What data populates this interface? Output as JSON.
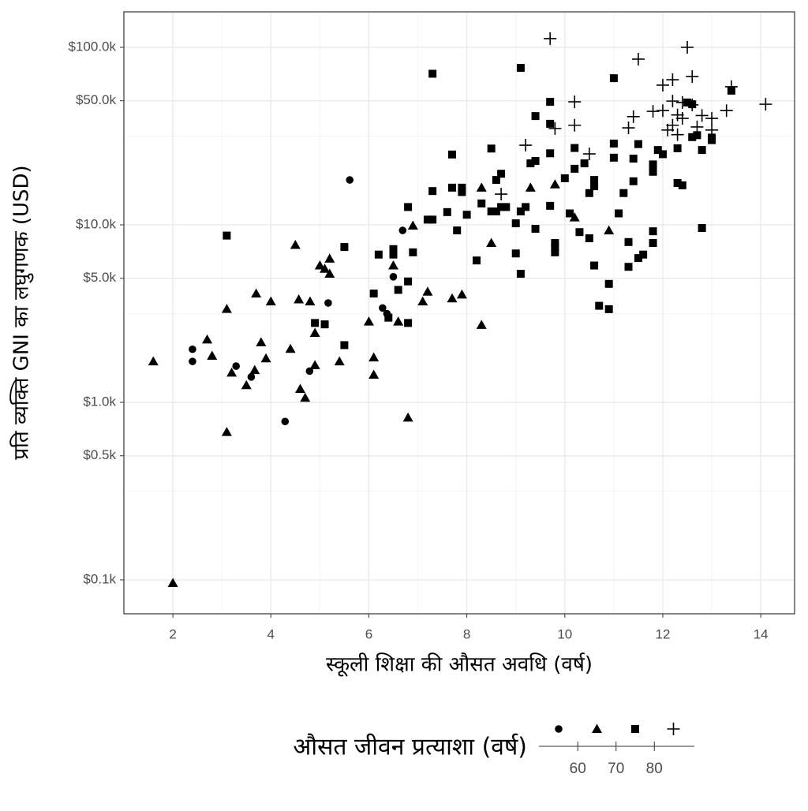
{
  "chart_data": {
    "type": "scatter",
    "x_label": "स्कूली शिक्षा की औसत अवधि (वर्ष)",
    "y_label": "प्रति व्यक्ति GNI का लघुगणक (USD)",
    "legend_title": "औसत जीवन प्रत्याशा (वर्ष)",
    "legend_breaks": [
      60,
      70,
      80
    ],
    "xlim": [
      1.0,
      14.69
    ],
    "xticks": [
      2,
      4,
      6,
      8,
      10,
      12,
      14
    ],
    "xminor": [
      3,
      5,
      7,
      9,
      11,
      13
    ],
    "ylim": [
      64.4,
      158489
    ],
    "y_log": true,
    "yticks": [
      {
        "value": 100,
        "label": "$0.1k"
      },
      {
        "value": 500,
        "label": "$0.5k"
      },
      {
        "value": 1000,
        "label": "$1.0k"
      },
      {
        "value": 5000,
        "label": "$5.0k"
      },
      {
        "value": 10000,
        "label": "$10.0k"
      },
      {
        "value": 50000,
        "label": "$50.0k"
      },
      {
        "value": 100000,
        "label": "$100.0k"
      }
    ],
    "yminor": [
      316,
      3162,
      31623
    ],
    "grid": true,
    "series": [
      {
        "shape": "circle",
        "color": "#000000",
        "x": [
          5.61,
          2.4,
          2.4,
          3.29,
          3.6,
          4.79,
          5.17,
          4.29,
          6.28,
          6.37,
          6.5,
          6.69
        ],
        "values": [
          17900,
          1990,
          1700,
          1600,
          1390,
          1500,
          3630,
          780,
          3400,
          3160,
          5100,
          9300
        ]
      },
      {
        "shape": "triangle",
        "color": "#000000",
        "x": [
          1.6,
          2.0,
          2.7,
          2.8,
          3.1,
          3.1,
          3.2,
          3.5,
          3.67,
          3.7,
          3.8,
          3.9,
          4.0,
          4.4,
          4.5,
          4.57,
          4.6,
          4.7,
          4.8,
          4.9,
          4.9,
          5.0,
          5.1,
          5.2,
          5.2,
          5.4,
          6.0,
          6.1,
          6.1,
          6.5,
          6.6,
          6.8,
          6.9,
          7.1,
          7.2,
          7.7,
          7.9,
          8.3,
          8.3,
          8.5,
          9.3,
          9.8,
          10.2,
          10.9
        ],
        "values": [
          1700,
          96,
          2260,
          1830,
          3360,
          680,
          1470,
          1250,
          1520,
          4100,
          2180,
          1770,
          3700,
          2000,
          7700,
          3800,
          1190,
          1060,
          3700,
          2460,
          1620,
          5900,
          5650,
          6450,
          5300,
          1700,
          2850,
          1790,
          1430,
          5900,
          2850,
          820,
          9900,
          3700,
          4200,
          3850,
          4050,
          2730,
          16200,
          7900,
          16200,
          16900,
          11000,
          9300
        ]
      },
      {
        "shape": "square",
        "color": "#000000",
        "x": [
          3.1,
          4.9,
          5.1,
          5.5,
          5.5,
          6.2,
          6.1,
          6.4,
          6.5,
          6.5,
          6.6,
          6.8,
          6.8,
          6.9,
          6.8,
          7.2,
          7.3,
          7.3,
          7.3,
          7.6,
          7.7,
          7.7,
          7.8,
          7.9,
          7.9,
          8.0,
          8.2,
          8.3,
          8.5,
          8.6,
          8.5,
          8.6,
          8.7,
          8.7,
          8.8,
          9.0,
          9.0,
          9.1,
          9.1,
          9.2,
          9.1,
          9.3,
          9.4,
          9.4,
          9.4,
          9.7,
          9.7,
          9.7,
          9.7,
          9.8,
          9.8,
          9.8,
          10.0,
          10.1,
          10.2,
          10.2,
          10.3,
          10.4,
          10.5,
          10.5,
          10.6,
          10.6,
          10.6,
          10.7,
          10.9,
          10.9,
          11.0,
          11.0,
          11.0,
          11.1,
          11.2,
          11.3,
          11.3,
          11.4,
          11.4,
          11.5,
          11.5,
          11.6,
          11.8,
          11.8,
          11.8,
          11.8,
          11.9,
          12.0,
          12.3,
          12.3,
          12.4,
          12.5,
          12.6,
          12.6,
          12.7,
          12.8,
          12.8,
          13.0,
          13.0,
          13.4
        ],
        "values": [
          8700,
          2800,
          2750,
          7500,
          2100,
          6800,
          4100,
          3000,
          7300,
          6800,
          4300,
          4800,
          2800,
          7000,
          12600,
          10700,
          10700,
          15500,
          71000,
          11800,
          24900,
          16200,
          9300,
          16200,
          15300,
          11400,
          6300,
          13200,
          26900,
          11900,
          11900,
          17900,
          19400,
          12600,
          12600,
          10200,
          6900,
          5300,
          11900,
          12600,
          76600,
          22200,
          41000,
          22900,
          9500,
          49300,
          37100,
          25300,
          12800,
          7900,
          7500,
          7000,
          18300,
          11600,
          27100,
          20700,
          9100,
          22200,
          15100,
          8400,
          17900,
          16500,
          5900,
          3500,
          3350,
          4650,
          28700,
          67000,
          23900,
          11600,
          15100,
          8000,
          5800,
          23600,
          17600,
          6500,
          28500,
          6800,
          21900,
          19900,
          9200,
          7900,
          26400,
          25000,
          27000,
          17200,
          16700,
          48900,
          31200,
          47800,
          32000,
          26400,
          9600,
          31000,
          30000,
          57000
        ]
      },
      {
        "shape": "plus",
        "color": "#000000",
        "x": [
          9.7,
          11.5,
          12.5,
          12.6,
          12.2,
          12.0,
          12.2,
          12.4,
          12.6,
          12.0,
          12.4,
          11.8,
          10.2,
          11.4,
          12.3,
          12.8,
          13.0,
          12.7,
          12.2,
          12.1,
          12.3,
          11.3,
          9.8,
          10.2,
          9.2,
          10.5,
          8.7,
          13.3,
          13.4,
          14.1,
          13.0
        ],
        "values": [
          112000,
          85800,
          100000,
          68500,
          65700,
          61200,
          49800,
          48900,
          47400,
          44000,
          39800,
          43600,
          49300,
          40700,
          41600,
          41300,
          39800,
          35600,
          36400,
          34200,
          32200,
          35200,
          34900,
          36400,
          28100,
          25100,
          14900,
          44000,
          60000,
          47800,
          34200
        ]
      }
    ]
  }
}
